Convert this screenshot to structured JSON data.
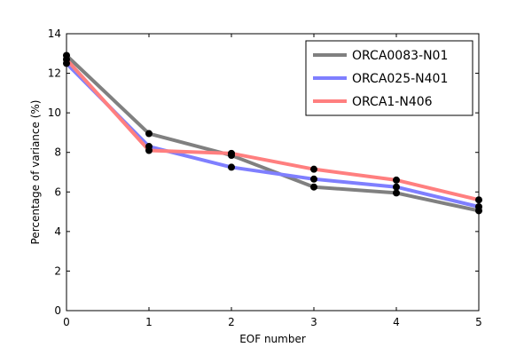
{
  "chart_data": {
    "type": "line",
    "title": "",
    "xlabel": "EOF number",
    "ylabel": "Percentage of variance (%)",
    "xlim": [
      0,
      5
    ],
    "ylim": [
      0,
      14
    ],
    "x_ticks": [
      0,
      1,
      2,
      3,
      4,
      5
    ],
    "y_ticks": [
      0,
      2,
      4,
      6,
      8,
      10,
      12,
      14
    ],
    "grid": false,
    "legend_position": "top-right",
    "x": [
      0,
      1,
      2,
      3,
      4,
      5
    ],
    "series": [
      {
        "name": "ORCA0083-N01",
        "color": "#808080",
        "values": [
          12.9,
          8.95,
          7.85,
          6.25,
          5.95,
          5.05
        ]
      },
      {
        "name": "ORCA025-N401",
        "color": "#7f7fff",
        "values": [
          12.5,
          8.3,
          7.25,
          6.65,
          6.25,
          5.25
        ]
      },
      {
        "name": "ORCA1-N406",
        "color": "#ff7f7f",
        "values": [
          12.7,
          8.1,
          7.95,
          7.15,
          6.6,
          5.6
        ]
      }
    ]
  }
}
